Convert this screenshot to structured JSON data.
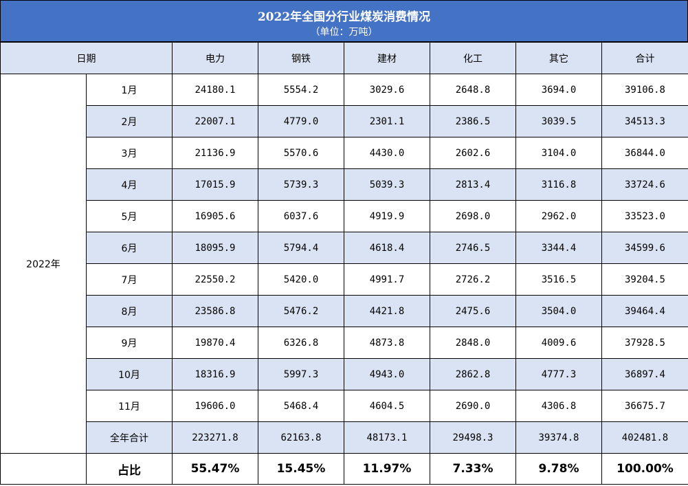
{
  "title": "2022年全国分行业煤炭消费情况",
  "subtitle": "（单位：万吨）",
  "header": {
    "date": "日期",
    "columns": [
      "电力",
      "钢铁",
      "建材",
      "化工",
      "其它",
      "合计"
    ]
  },
  "year_label": "2022年",
  "rows": [
    {
      "month": "1月",
      "values": [
        "24180.1",
        "5554.2",
        "3029.6",
        "2648.8",
        "3694.0",
        "39106.8"
      ]
    },
    {
      "month": "2月",
      "values": [
        "22007.1",
        "4779.0",
        "2301.1",
        "2386.5",
        "3039.5",
        "34513.3"
      ]
    },
    {
      "month": "3月",
      "values": [
        "21136.9",
        "5570.6",
        "4430.0",
        "2602.6",
        "3104.0",
        "36844.0"
      ]
    },
    {
      "month": "4月",
      "values": [
        "17015.9",
        "5739.3",
        "5039.3",
        "2813.4",
        "3116.8",
        "33724.6"
      ]
    },
    {
      "month": "5月",
      "values": [
        "16905.6",
        "6037.6",
        "4919.9",
        "2698.0",
        "2962.0",
        "33523.0"
      ]
    },
    {
      "month": "6月",
      "values": [
        "18095.9",
        "5794.4",
        "4618.4",
        "2746.5",
        "3344.4",
        "34599.6"
      ]
    },
    {
      "month": "7月",
      "values": [
        "22550.2",
        "5420.0",
        "4991.7",
        "2726.2",
        "3516.5",
        "39204.5"
      ]
    },
    {
      "month": "8月",
      "values": [
        "23586.8",
        "5476.2",
        "4421.8",
        "2475.6",
        "3504.0",
        "39464.4"
      ]
    },
    {
      "month": "9月",
      "values": [
        "19870.4",
        "6326.8",
        "4873.8",
        "2848.0",
        "4009.6",
        "37928.5"
      ]
    },
    {
      "month": "10月",
      "values": [
        "18316.9",
        "5997.3",
        "4943.0",
        "2862.8",
        "4777.3",
        "36897.4"
      ]
    },
    {
      "month": "11月",
      "values": [
        "19606.0",
        "5468.4",
        "4604.5",
        "2690.0",
        "4306.8",
        "36675.7"
      ]
    }
  ],
  "total": {
    "label": "全年合计",
    "values": [
      "223271.8",
      "62163.8",
      "48173.1",
      "29498.3",
      "39374.8",
      "402481.8"
    ]
  },
  "ratio": {
    "label": "占比",
    "values": [
      "55.47%",
      "15.45%",
      "11.97%",
      "7.33%",
      "9.78%",
      "100.00%"
    ]
  },
  "colors": {
    "title_bg": "#4472c4",
    "band": "#dae3f3",
    "title_text": "#ffffff"
  }
}
